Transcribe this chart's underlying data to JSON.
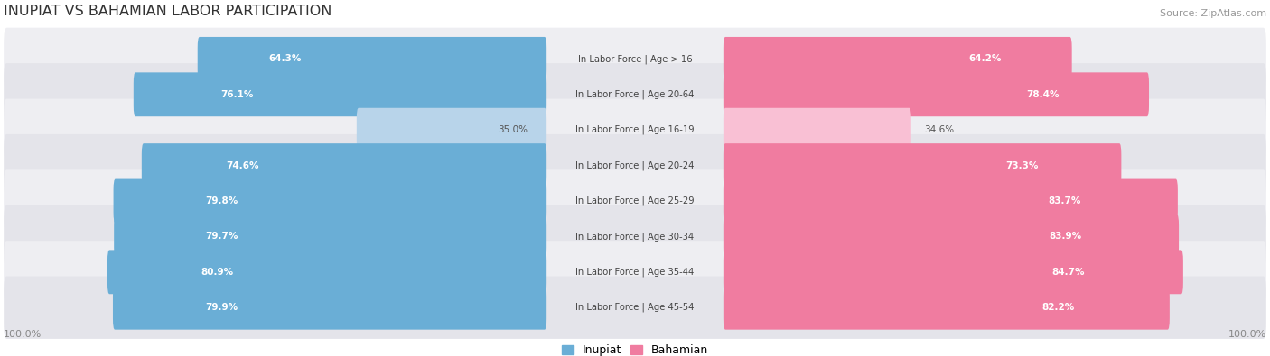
{
  "title": "INUPIAT VS BAHAMIAN LABOR PARTICIPATION",
  "source": "Source: ZipAtlas.com",
  "categories": [
    "In Labor Force | Age > 16",
    "In Labor Force | Age 20-64",
    "In Labor Force | Age 16-19",
    "In Labor Force | Age 20-24",
    "In Labor Force | Age 25-29",
    "In Labor Force | Age 30-34",
    "In Labor Force | Age 35-44",
    "In Labor Force | Age 45-54"
  ],
  "inupiat": [
    64.3,
    76.1,
    35.0,
    74.6,
    79.8,
    79.7,
    80.9,
    79.9
  ],
  "bahamian": [
    64.2,
    78.4,
    34.6,
    73.3,
    83.7,
    83.9,
    84.7,
    82.2
  ],
  "inupiat_color": "#6aaed6",
  "inupiat_color_light": "#b8d4ea",
  "bahamian_color": "#f07ca0",
  "bahamian_color_light": "#f9c0d4",
  "row_bg": "#e8e8ec",
  "max_value": 100.0,
  "legend_inupiat": "Inupiat",
  "legend_bahamian": "Bahamian"
}
